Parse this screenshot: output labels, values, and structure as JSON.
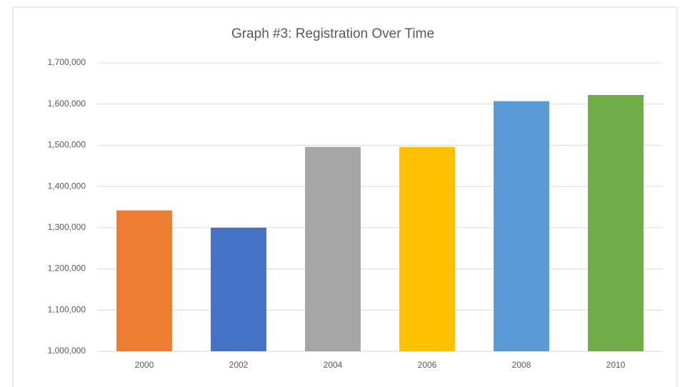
{
  "chart_data": {
    "type": "bar",
    "title": "Graph #3: Registration Over Time",
    "categories": [
      "2000",
      "2002",
      "2004",
      "2006",
      "2008",
      "2010"
    ],
    "values": [
      1342000,
      1300000,
      1496000,
      1496000,
      1607000,
      1622000
    ],
    "colors": [
      "#ed7d31",
      "#4472c4",
      "#a5a5a5",
      "#ffc000",
      "#5b9bd5",
      "#70ad47"
    ],
    "ylim": [
      1000000,
      1700000
    ],
    "yticks": [
      {
        "value": 1000000,
        "label": "1,000,000"
      },
      {
        "value": 1100000,
        "label": "1,100,000"
      },
      {
        "value": 1200000,
        "label": "1,200,000"
      },
      {
        "value": 1300000,
        "label": "1,300,000"
      },
      {
        "value": 1400000,
        "label": "1,400,000"
      },
      {
        "value": 1500000,
        "label": "1,500,000"
      },
      {
        "value": 1600000,
        "label": "1,600,000"
      },
      {
        "value": 1700000,
        "label": "1,700,000"
      }
    ],
    "grid": true
  }
}
